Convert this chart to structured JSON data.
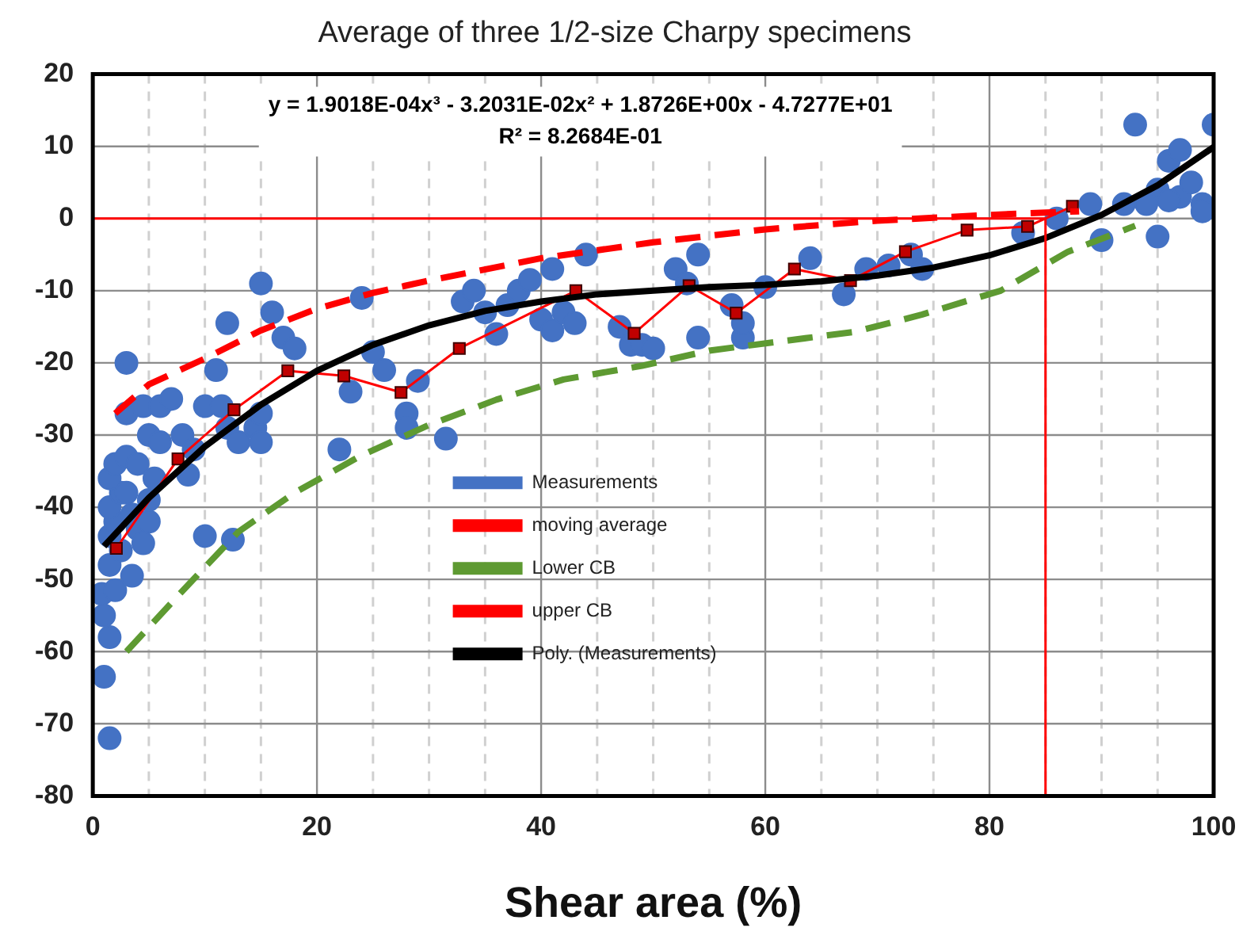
{
  "chart_data": {
    "type": "scatter",
    "title": "Average of three 1/2-size Charpy specimens",
    "xlabel": "Shear area (%)",
    "annotations": [
      "y = 1.9018E-04x³ - 3.2031E-02x² + 1.8726E+00x - 4.7277E+01",
      "R² = 8.2684E-01"
    ],
    "xlim": [
      0,
      100
    ],
    "ylim": [
      -80,
      20
    ],
    "xticks": [
      0,
      {
        "value": 5,
        "label": null
      },
      {
        "value": 10,
        "label": null
      },
      {
        "value": 15,
        "label": null
      },
      20,
      {
        "value": 25,
        "label": null
      },
      {
        "value": 30,
        "label": null
      },
      {
        "value": 35,
        "label": null
      },
      40,
      {
        "value": 45,
        "label": null
      },
      {
        "value": 50,
        "label": null
      },
      {
        "value": 55,
        "label": null
      },
      60,
      {
        "value": 65,
        "label": null
      },
      {
        "value": 70,
        "label": null
      },
      {
        "value": 75,
        "label": null
      },
      80,
      {
        "value": 85,
        "label": null
      },
      {
        "value": 90,
        "label": null
      },
      {
        "value": 95,
        "label": null
      },
      100
    ],
    "yticks": [
      -80,
      -70,
      -60,
      -50,
      -40,
      -30,
      -20,
      -10,
      0,
      10,
      20
    ],
    "grid": true,
    "legend": "center",
    "series": [
      {
        "name": "Measurements",
        "type": "scatter",
        "marker": "circle",
        "color": "#4472c4",
        "x": [
          1.5,
          1,
          1.5,
          1,
          0.8,
          2,
          1.5,
          2.5,
          1.5,
          2,
          1.5,
          2.5,
          1.5,
          2,
          3,
          4,
          3,
          3.5,
          4,
          5,
          4.5,
          3.5,
          5,
          5.5,
          3,
          4.5,
          3,
          6,
          7,
          5,
          6,
          8,
          9,
          8.5,
          10,
          11,
          11.5,
          12,
          12,
          13,
          14.5,
          10,
          12.5,
          15,
          16,
          17,
          15,
          15,
          18,
          22,
          23,
          24,
          25,
          28,
          28,
          31.5,
          29,
          26,
          33,
          34,
          35,
          36,
          37,
          38,
          39,
          41,
          40,
          41,
          42,
          43,
          44,
          47,
          48,
          49,
          50,
          52,
          53,
          54,
          54,
          57,
          58,
          58,
          60,
          64,
          67,
          69,
          71,
          73,
          74,
          83,
          86,
          89,
          90,
          92,
          93,
          95,
          95,
          96,
          97,
          97,
          98,
          99,
          99,
          100,
          96,
          94
        ],
        "values": [
          -72,
          -63.5,
          -58,
          -55,
          -52,
          -51.5,
          -48,
          -46,
          -44,
          -42,
          -40,
          -38,
          -36,
          -34,
          -33,
          -34,
          -38,
          -41,
          -43,
          -42,
          -45,
          -49.5,
          -39,
          -36,
          -27,
          -26,
          -20,
          -26,
          -25,
          -30,
          -31,
          -30,
          -32,
          -35.5,
          -26,
          -21,
          -26,
          -14.5,
          -29,
          -31,
          -29,
          -44,
          -44.5,
          -9,
          -13,
          -16.5,
          -31,
          -27,
          -18,
          -32,
          -24,
          -11,
          -18.5,
          -27,
          -29,
          -30.5,
          -22.5,
          -21,
          -11.5,
          -10,
          -13,
          -16,
          -12,
          -10,
          -8.5,
          -7,
          -14,
          -15.5,
          -13,
          -14.5,
          -5,
          -15,
          -17.5,
          -17.5,
          -18,
          -7,
          -9,
          -5,
          -16.5,
          -12,
          -16.5,
          -14.5,
          -9.5,
          -5.5,
          -10.5,
          -7,
          -6.5,
          -5,
          -7,
          -2,
          0,
          2,
          -3,
          2,
          13,
          -2.5,
          4,
          8,
          9.5,
          3,
          5,
          2,
          1,
          13,
          2.5,
          2
        ]
      },
      {
        "name": "moving average",
        "type": "line",
        "marker": "square",
        "line_style": "solid",
        "color": "#ff0000",
        "x": [
          2.1,
          7.6,
          12.6,
          17.4,
          22.4,
          27.5,
          32.7,
          43.1,
          48.3,
          53.2,
          57.4,
          62.6,
          67.6,
          72.5,
          78,
          83.4,
          87.4
        ],
        "values": [
          -45.7,
          -33.3,
          -26.5,
          -21.1,
          -21.8,
          -24.1,
          -18,
          -10,
          -15.9,
          -9.3,
          -13.1,
          -7,
          -8.6,
          -4.6,
          -1.6,
          -1.1,
          1.7
        ]
      },
      {
        "name": "Lower CB",
        "type": "line",
        "marker": "none",
        "line_style": "dashed",
        "color": "#5e9a32",
        "x": [
          3,
          8,
          13,
          18,
          24,
          30,
          36,
          42,
          49,
          55,
          61,
          68,
          74,
          81,
          87,
          93
        ],
        "values": [
          -60,
          -51.6,
          -43.4,
          -38,
          -32.8,
          -28.6,
          -25.1,
          -22.3,
          -20.4,
          -18.3,
          -17.1,
          -15.7,
          -13.3,
          -10,
          -4.6,
          -1
        ]
      },
      {
        "name": "upper CB",
        "type": "line",
        "marker": "none",
        "line_style": "dashed",
        "color": "#ff0000",
        "x": [
          2,
          5,
          10,
          15,
          20,
          25,
          30,
          40,
          50,
          60,
          70,
          80,
          88
        ],
        "values": [
          -27,
          -23,
          -19.4,
          -15.5,
          -12.5,
          -10.3,
          -8.6,
          -5.5,
          -3.3,
          -1.5,
          -0.3,
          0.5,
          1
        ]
      },
      {
        "name": "Poly. (Measurements)",
        "type": "line",
        "marker": "none",
        "line_style": "solid",
        "color": "#000000",
        "x": [
          1,
          5,
          10,
          15,
          20,
          25,
          30,
          35,
          40,
          45,
          50,
          55,
          60,
          65,
          70,
          75,
          80,
          85,
          90,
          95,
          100
        ],
        "values": [
          -45.4,
          -38.7,
          -31.6,
          -25.8,
          -21.1,
          -17.5,
          -14.8,
          -12.8,
          -11.5,
          -10.5,
          -10,
          -9.5,
          -9.2,
          -8.7,
          -7.9,
          -6.8,
          -5.1,
          -2.7,
          0.5,
          4.6,
          9.9
        ]
      },
      {
        "type": "line",
        "marker": "none",
        "line_style": "solid",
        "color": "#ff0000",
        "x": [
          0,
          85,
          85
        ],
        "values": [
          0,
          0,
          -80
        ]
      }
    ]
  }
}
